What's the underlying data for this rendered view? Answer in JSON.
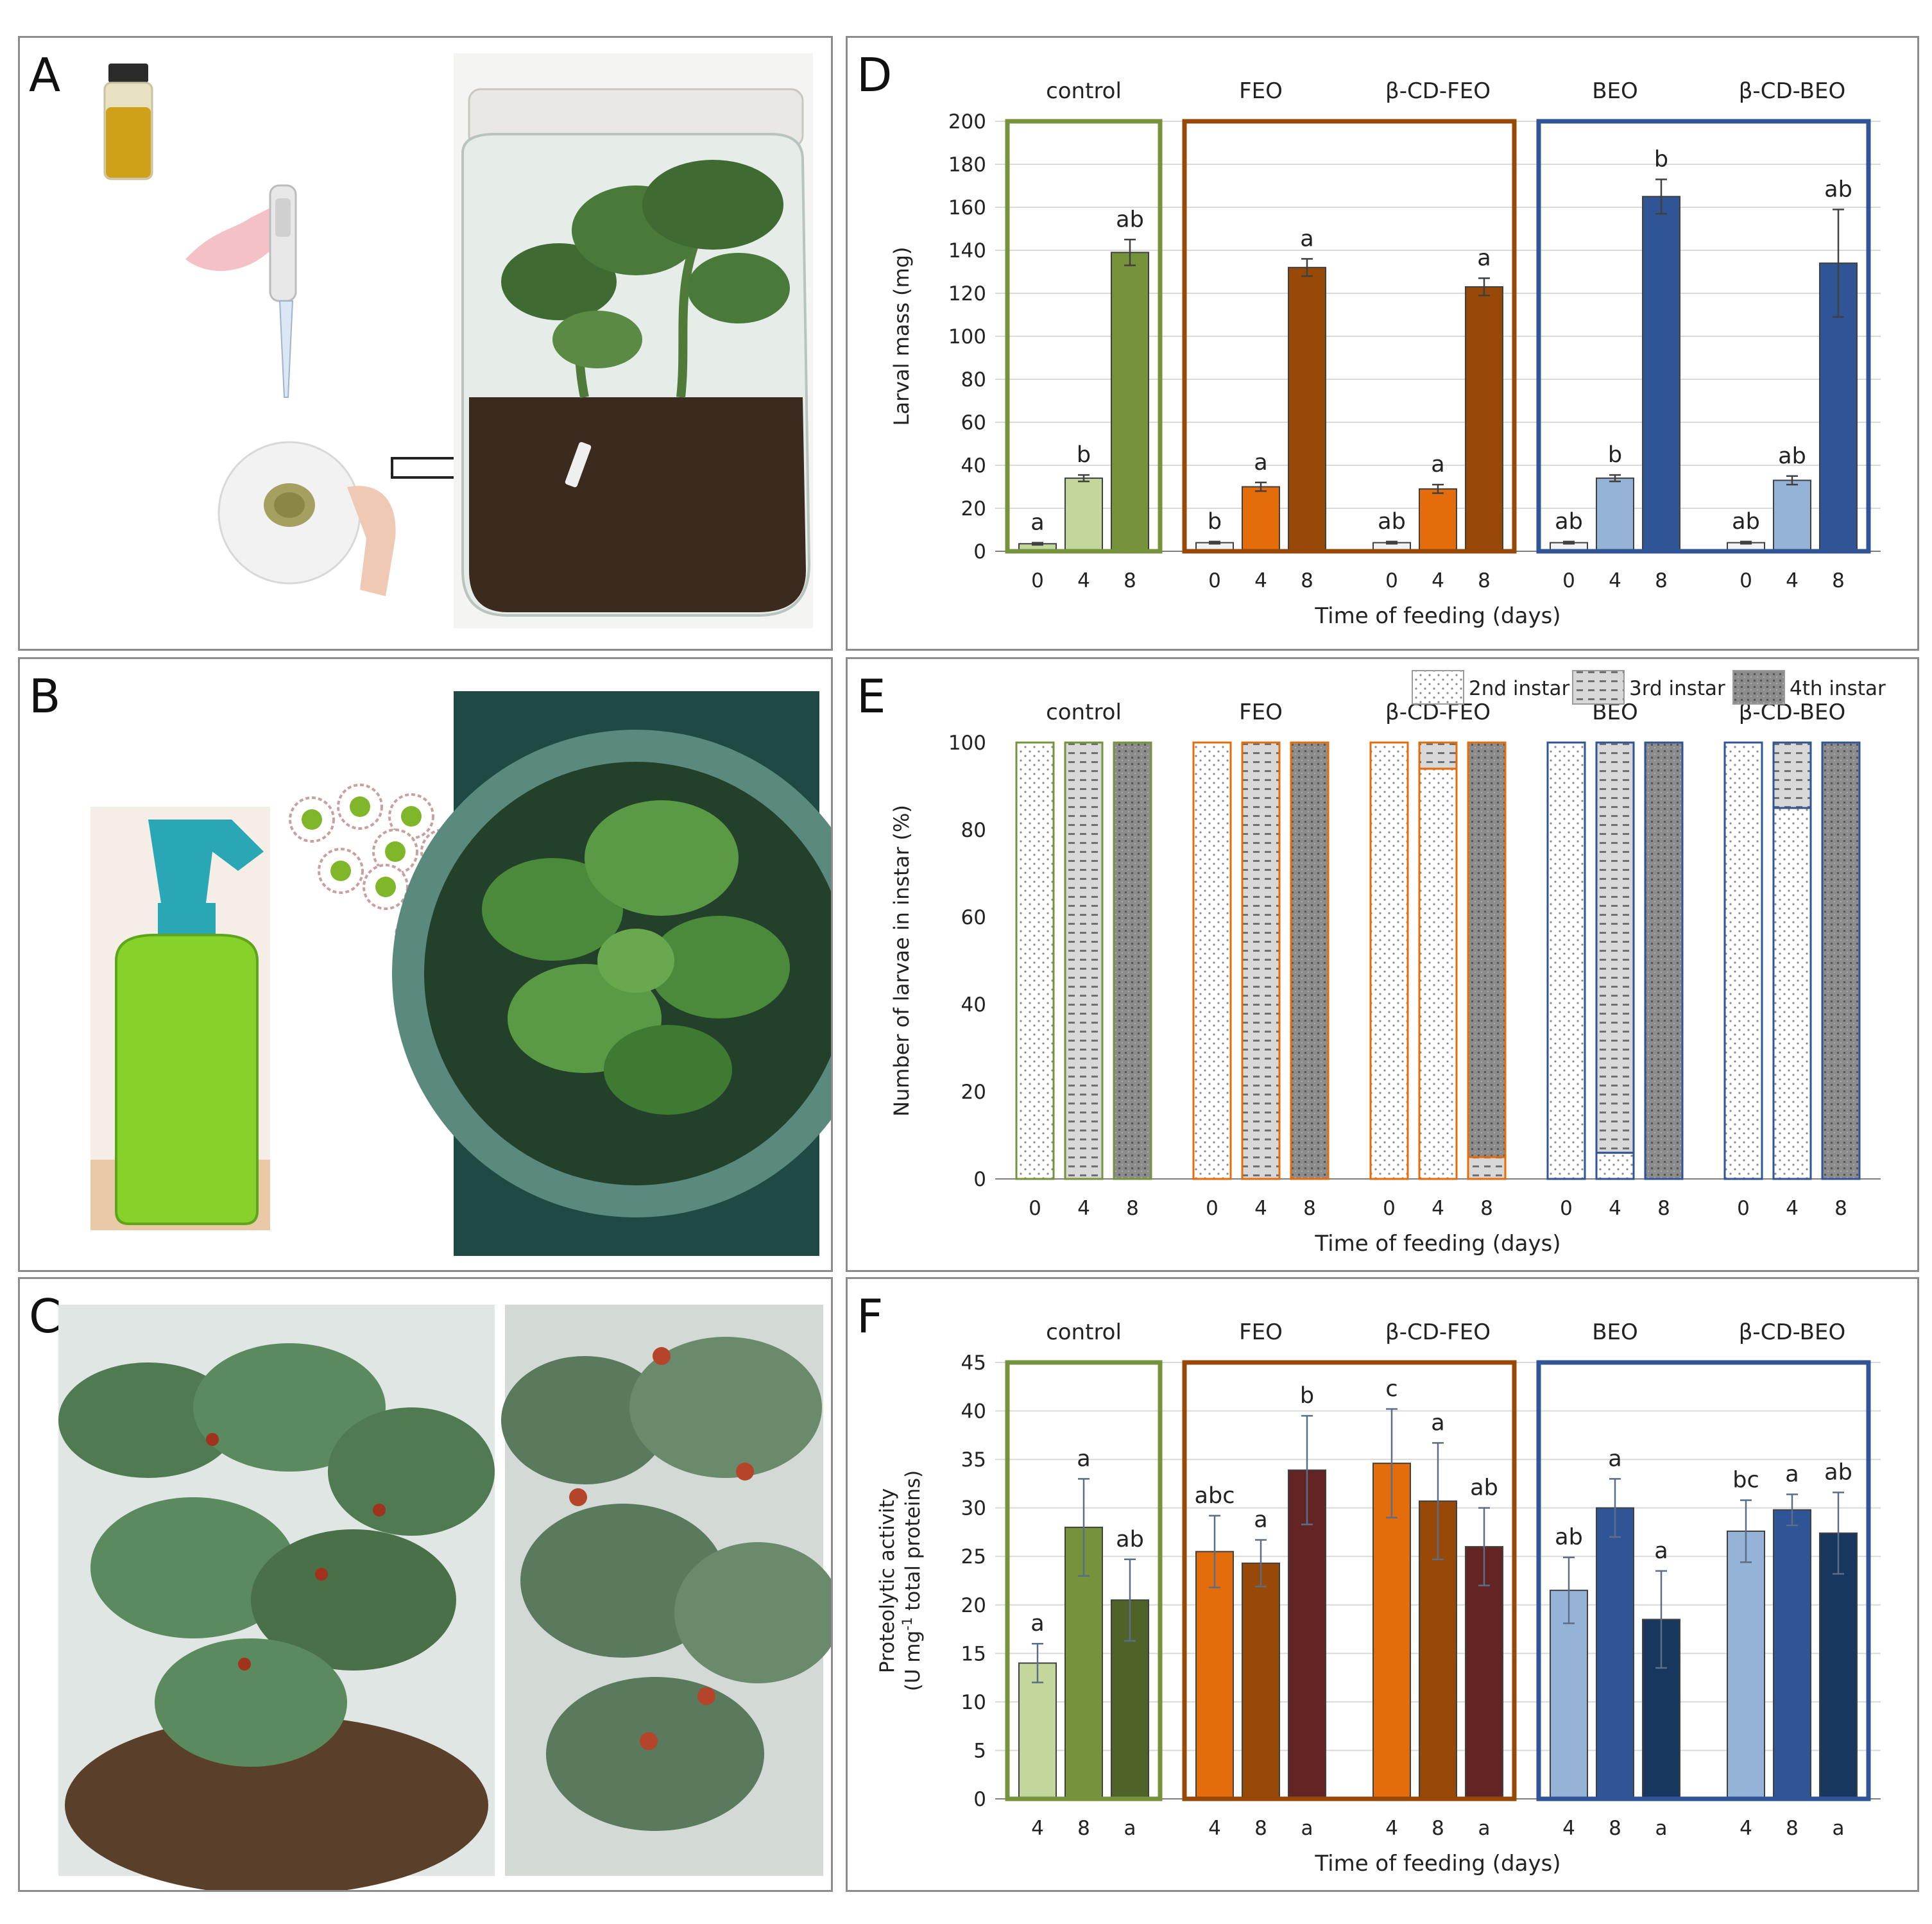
{
  "panels": {
    "A": {
      "label": "A"
    },
    "B": {
      "label": "B"
    },
    "C": {
      "label": "C"
    },
    "D": {
      "label": "D"
    },
    "E": {
      "label": "E"
    },
    "F": {
      "label": "F"
    }
  },
  "colors": {
    "control": "#76933c",
    "feo": "#984807",
    "beo": "#2f5597",
    "frame_border": "#8c8c8c",
    "leaf_green": "#3f6b33",
    "soil": "#3b2a1e",
    "spray_liquid": "#86d22b",
    "bottle_teal": "#2aa7b5"
  },
  "icons": [
    "oil-vial-icon",
    "pipette-icon",
    "filter-paper-icon",
    "arrow-right-icon",
    "spray-bottle-icon",
    "cyclodextrin-complex-icon"
  ],
  "chart_data": [
    {
      "id": "D",
      "type": "bar",
      "ylabel": "Larval mass (mg)",
      "xlabel": "Time of feeding (days)",
      "ylim": [
        0,
        200
      ],
      "yticks": [
        0,
        20,
        40,
        60,
        80,
        100,
        120,
        140,
        160,
        180,
        200
      ],
      "grid": true,
      "groups": [
        {
          "name": "control",
          "x": [
            "0",
            "4",
            "8"
          ],
          "values": [
            3.5,
            34,
            139
          ],
          "err": [
            0.5,
            1.5,
            6
          ],
          "letters": [
            "a",
            "b",
            "ab"
          ],
          "colors": [
            "#c3d69b",
            "#c3d69b",
            "#76933c"
          ]
        },
        {
          "name": "FEO",
          "x": [
            "0",
            "4",
            "8"
          ],
          "values": [
            4,
            30,
            132
          ],
          "err": [
            0.5,
            2,
            4
          ],
          "letters": [
            "b",
            "a",
            "a"
          ],
          "colors": [
            "#f2f2f2",
            "#e46c0a",
            "#984807"
          ]
        },
        {
          "name": "β-CD-FEO",
          "x": [
            "0",
            "4",
            "8"
          ],
          "values": [
            4,
            29,
            123
          ],
          "err": [
            0.5,
            2,
            4
          ],
          "letters": [
            "ab",
            "a",
            "a"
          ],
          "colors": [
            "#f2f2f2",
            "#e46c0a",
            "#984807"
          ]
        },
        {
          "name": "BEO",
          "x": [
            "0",
            "4",
            "8"
          ],
          "values": [
            4,
            34,
            165
          ],
          "err": [
            0.5,
            1.5,
            8
          ],
          "letters": [
            "ab",
            "b",
            "b"
          ],
          "colors": [
            "#f2f2f2",
            "#95b3d7",
            "#2f5597"
          ]
        },
        {
          "name": "β-CD-BEO",
          "x": [
            "0",
            "4",
            "8"
          ],
          "values": [
            4,
            33,
            134
          ],
          "err": [
            0.5,
            2,
            25
          ],
          "letters": [
            "ab",
            "ab",
            "ab"
          ],
          "colors": [
            "#f2f2f2",
            "#95b3d7",
            "#2f5597"
          ]
        }
      ],
      "frames": [
        {
          "groups": [
            "control"
          ],
          "color": "#76933c"
        },
        {
          "groups": [
            "FEO",
            "β-CD-FEO"
          ],
          "color": "#984807"
        },
        {
          "groups": [
            "BEO",
            "β-CD-BEO"
          ],
          "color": "#2f5597"
        }
      ]
    },
    {
      "id": "E",
      "type": "bar",
      "stacked": true,
      "ylabel": "Number of larvae in instar (%)",
      "xlabel": "Time of feeding (days)",
      "ylim": [
        0,
        100
      ],
      "yticks": [
        0,
        20,
        40,
        60,
        80,
        100
      ],
      "grid": false,
      "legend": {
        "placement": "top-right",
        "entries": [
          "2nd instar",
          "3rd instar",
          "4th instar"
        ]
      },
      "groups": [
        {
          "name": "control",
          "x": [
            "0",
            "4",
            "8"
          ],
          "stacks": [
            [
              100,
              0,
              0
            ],
            [
              0,
              100,
              0
            ],
            [
              0,
              0,
              100
            ]
          ],
          "edge": "#76933c"
        },
        {
          "name": "FEO",
          "x": [
            "0",
            "4",
            "8"
          ],
          "stacks": [
            [
              100,
              0,
              0
            ],
            [
              0,
              100,
              0
            ],
            [
              0,
              0,
              100
            ]
          ],
          "edge": "#e46c0a"
        },
        {
          "name": "β-CD-FEO",
          "x": [
            "0",
            "4",
            "8"
          ],
          "stacks": [
            [
              100,
              0,
              0
            ],
            [
              94,
              6,
              0
            ],
            [
              0,
              5,
              95
            ]
          ],
          "edge": "#e46c0a"
        },
        {
          "name": "BEO",
          "x": [
            "0",
            "4",
            "8"
          ],
          "stacks": [
            [
              100,
              0,
              0
            ],
            [
              6,
              94,
              0
            ],
            [
              0,
              0,
              100
            ]
          ],
          "edge": "#2f5597"
        },
        {
          "name": "β-CD-BEO",
          "x": [
            "0",
            "4",
            "8"
          ],
          "stacks": [
            [
              100,
              0,
              0
            ],
            [
              85,
              15,
              0
            ],
            [
              0,
              0,
              100
            ]
          ],
          "edge": "#2f5597"
        }
      ]
    },
    {
      "id": "F",
      "type": "bar",
      "ylabel": "Proteolytic activity",
      "ylabel2_pre": "(U mg",
      "ylabel2_sup": "-1",
      "ylabel2_post": " total proteins)",
      "xlabel": "Time of feeding (days)",
      "ylim": [
        0,
        45
      ],
      "yticks": [
        0,
        5,
        10,
        15,
        20,
        25,
        30,
        35,
        40,
        45
      ],
      "grid": true,
      "groups": [
        {
          "name": "control",
          "x": [
            "4",
            "8",
            "a"
          ],
          "values": [
            14,
            28,
            20.5
          ],
          "err": [
            2,
            5,
            4.2
          ],
          "letters": [
            "a",
            "a",
            "ab"
          ],
          "colors": [
            "#c3d69b",
            "#76933c",
            "#4f6228"
          ]
        },
        {
          "name": "FEO",
          "x": [
            "4",
            "8",
            "a"
          ],
          "values": [
            25.5,
            24.3,
            33.9
          ],
          "err": [
            3.7,
            2.4,
            5.6
          ],
          "letters": [
            "abc",
            "a",
            "b"
          ],
          "colors": [
            "#e46c0a",
            "#984807",
            "#632523"
          ]
        },
        {
          "name": "β-CD-FEO",
          "x": [
            "4",
            "8",
            "a"
          ],
          "values": [
            34.6,
            30.7,
            26
          ],
          "err": [
            5.6,
            6,
            4
          ],
          "letters": [
            "c",
            "a",
            "ab"
          ],
          "colors": [
            "#e46c0a",
            "#984807",
            "#632523"
          ]
        },
        {
          "name": "BEO",
          "x": [
            "4",
            "8",
            "a"
          ],
          "values": [
            21.5,
            30,
            18.5
          ],
          "err": [
            3.4,
            3,
            5
          ],
          "letters": [
            "ab",
            "a",
            "a"
          ],
          "colors": [
            "#95b3d7",
            "#2f5597",
            "#17375e"
          ]
        },
        {
          "name": "β-CD-BEO",
          "x": [
            "4",
            "8",
            "a"
          ],
          "values": [
            27.6,
            29.8,
            27.4
          ],
          "err": [
            3.2,
            1.6,
            4.2
          ],
          "letters": [
            "bc",
            "a",
            "ab"
          ],
          "colors": [
            "#95b3d7",
            "#2f5597",
            "#17375e"
          ]
        }
      ],
      "frames": [
        {
          "groups": [
            "control"
          ],
          "color": "#76933c"
        },
        {
          "groups": [
            "FEO",
            "β-CD-FEO"
          ],
          "color": "#984807"
        },
        {
          "groups": [
            "BEO",
            "β-CD-BEO"
          ],
          "color": "#2f5597"
        }
      ]
    }
  ]
}
